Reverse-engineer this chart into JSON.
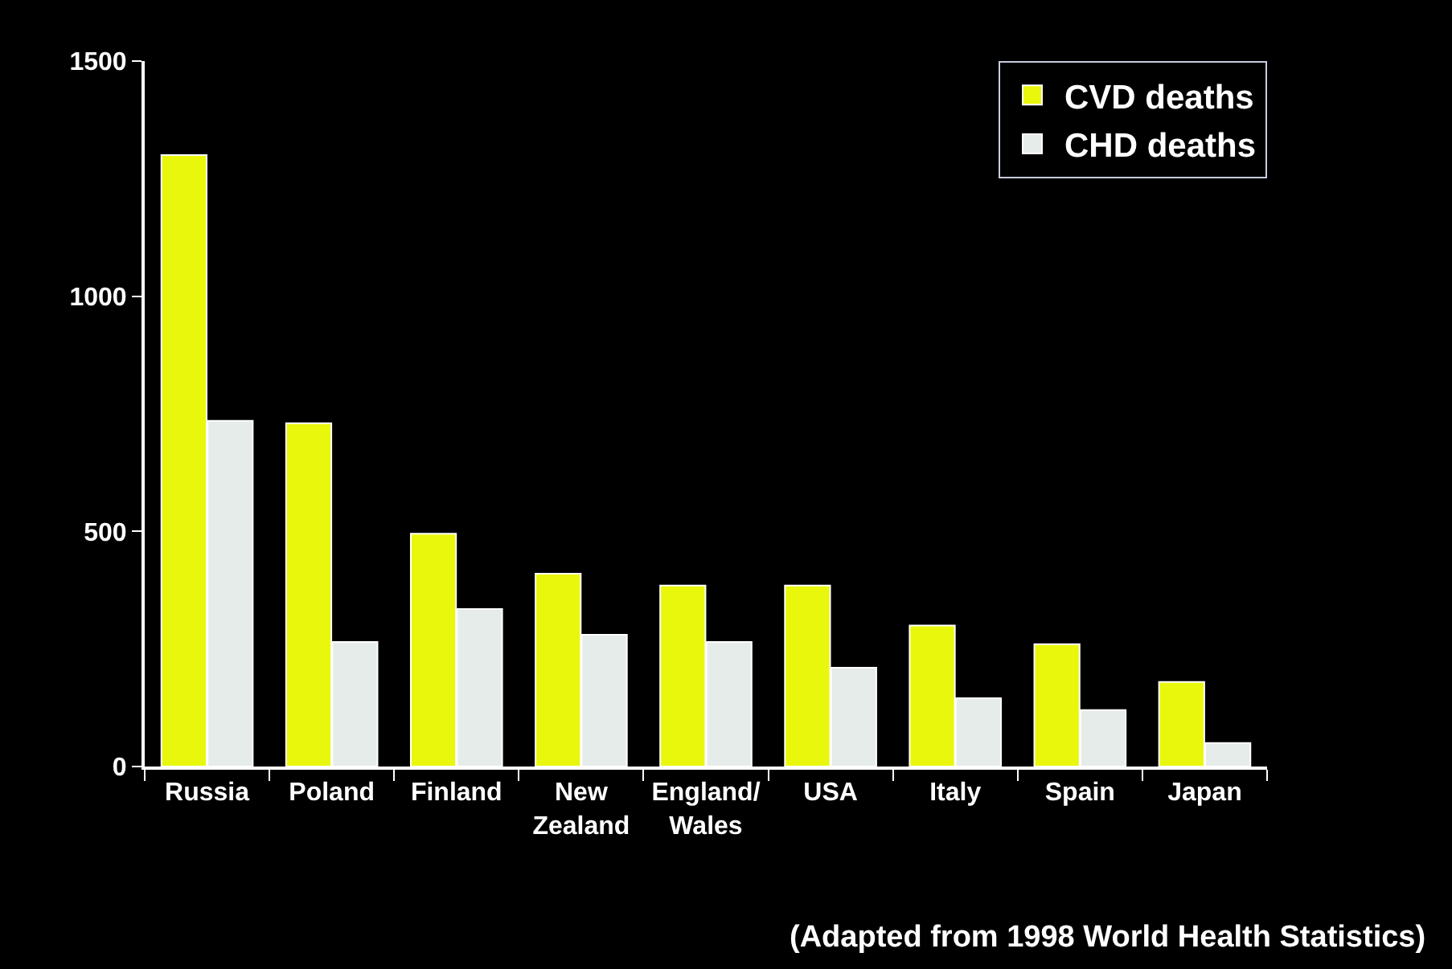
{
  "chart_data": {
    "type": "bar",
    "categories": [
      "Russia",
      "Poland",
      "Finland",
      "New Zealand",
      "England/ Wales",
      "USA",
      "Italy",
      "Spain",
      "Japan"
    ],
    "series": [
      {
        "name": "CVD deaths",
        "color": "#e8f70c",
        "values": [
          1300,
          730,
          495,
          410,
          385,
          385,
          300,
          260,
          180
        ]
      },
      {
        "name": "CHD deaths",
        "color": "#e6ecea",
        "values": [
          735,
          265,
          335,
          280,
          265,
          210,
          145,
          120,
          50
        ]
      }
    ],
    "ylim": [
      0,
      1500
    ],
    "yticks": [
      0,
      500,
      1000,
      1500
    ],
    "grid": false,
    "legend": "top right",
    "annotations": [
      "(Adapted from 1998 World Health Statistics)"
    ]
  }
}
